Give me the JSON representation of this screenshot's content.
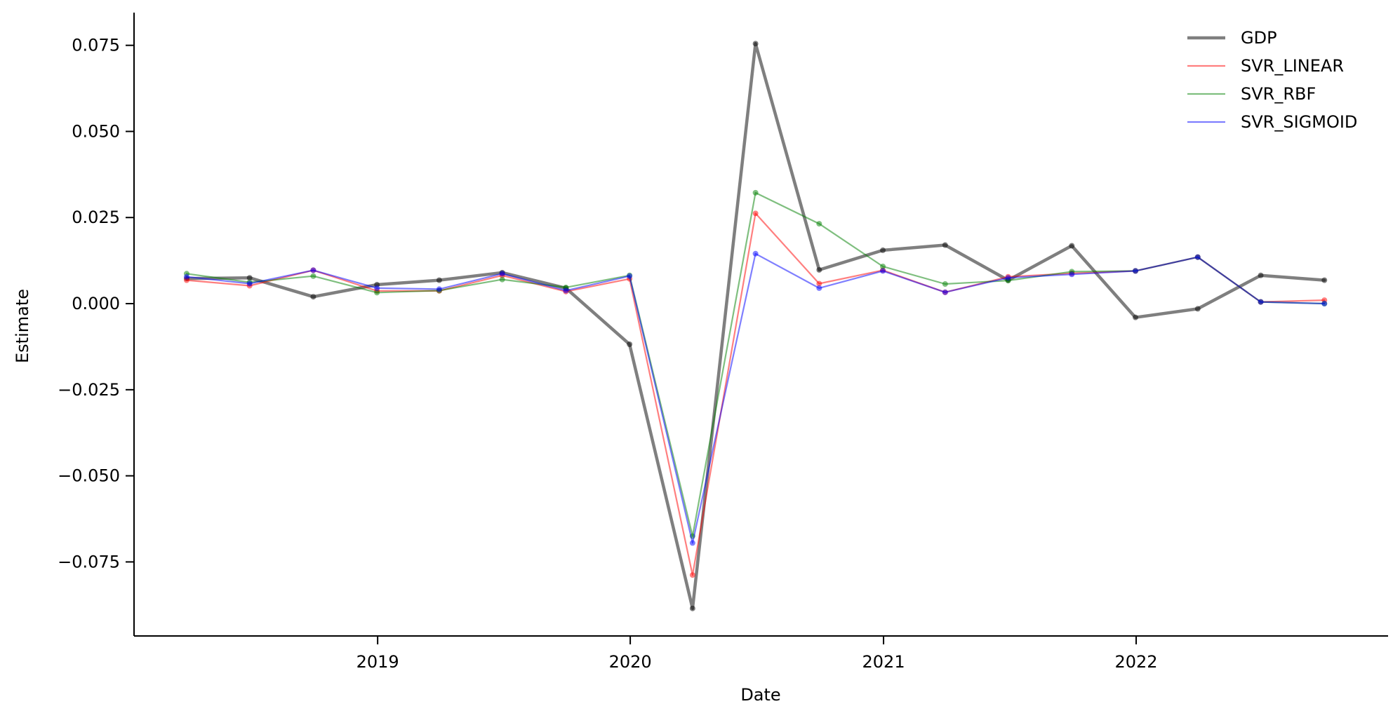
{
  "chart_data": {
    "type": "line",
    "title": "",
    "xlabel": "Date",
    "ylabel": "Estimate",
    "x": [
      "2018-03-31",
      "2018-06-30",
      "2018-09-30",
      "2018-12-31",
      "2019-03-31",
      "2019-06-30",
      "2019-09-30",
      "2019-12-31",
      "2020-03-31",
      "2020-06-30",
      "2020-09-30",
      "2020-12-31",
      "2021-03-31",
      "2021-06-30",
      "2021-09-30",
      "2021-12-31",
      "2022-03-31",
      "2022-06-30",
      "2022-09-30"
    ],
    "xticks": [
      {
        "date": "2019-01-01",
        "label": "2019"
      },
      {
        "date": "2020-01-01",
        "label": "2020"
      },
      {
        "date": "2021-01-01",
        "label": "2021"
      },
      {
        "date": "2022-01-01",
        "label": "2022"
      }
    ],
    "yticks": [
      0.075,
      0.05,
      0.025,
      0.0,
      -0.025,
      -0.05,
      -0.075
    ],
    "ytick_labels": [
      "0.075",
      "0.050",
      "0.025",
      "0.000",
      "−0.025",
      "−0.050",
      "−0.075"
    ],
    "ylim": [
      -0.0965,
      0.0845
    ],
    "xlim": [
      "2018-01-14",
      "2022-12-31"
    ],
    "grid": false,
    "legend_position": "top-right",
    "series": [
      {
        "name": "GDP",
        "color": "#000000",
        "opacity": 0.5,
        "width": "thick",
        "values": [
          0.0073,
          0.0075,
          0.002,
          0.0055,
          0.0068,
          0.009,
          0.0045,
          -0.0118,
          -0.0885,
          0.0755,
          0.0098,
          0.0155,
          0.017,
          0.0068,
          0.0168,
          -0.004,
          -0.0015,
          0.0082,
          0.0068
        ]
      },
      {
        "name": "SVR_LINEAR",
        "color": "#ff0000",
        "opacity": 0.5,
        "width": "thin",
        "values": [
          0.0068,
          0.0052,
          0.0097,
          0.0037,
          0.0037,
          0.0082,
          0.0035,
          0.0072,
          -0.0788,
          0.0262,
          0.0058,
          0.0097,
          0.0033,
          0.0078,
          0.0088,
          0.0095,
          0.0135,
          0.0005,
          0.001
        ]
      },
      {
        "name": "SVR_RBF",
        "color": "#008000",
        "opacity": 0.5,
        "width": "thin",
        "values": [
          0.0087,
          0.0062,
          0.008,
          0.0032,
          0.0038,
          0.007,
          0.0047,
          0.0082,
          -0.0675,
          0.0322,
          0.0232,
          0.0108,
          0.0057,
          0.0067,
          0.0093,
          0.0095,
          0.0135,
          0.0005,
          0.0
        ]
      },
      {
        "name": "SVR_SIGMOID",
        "color": "#0000ff",
        "opacity": 0.5,
        "width": "thin",
        "values": [
          0.0078,
          0.0058,
          0.0097,
          0.0045,
          0.0042,
          0.0087,
          0.0038,
          0.008,
          -0.0695,
          0.0145,
          0.0045,
          0.0095,
          0.0033,
          0.0075,
          0.0085,
          0.0095,
          0.0135,
          0.0005,
          0.0
        ]
      }
    ]
  }
}
